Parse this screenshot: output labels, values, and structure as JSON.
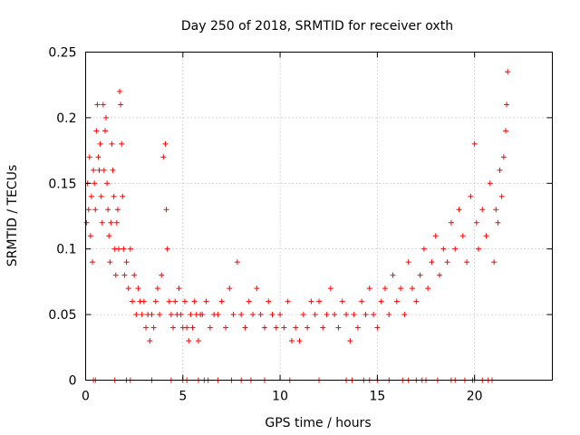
{
  "chart_data": {
    "type": "scatter",
    "title": "Day 250 of 2018, SRMTID for receiver oxth",
    "xlabel": "GPS time / hours",
    "ylabel": "SRMTID / TECUs",
    "xlim": [
      0,
      24
    ],
    "ylim": [
      0,
      0.25
    ],
    "xticks": [
      0,
      5,
      10,
      15,
      20
    ],
    "yticks": [
      0,
      0.05,
      0.1,
      0.15,
      0.2,
      0.25
    ],
    "xtick_labels": [
      "0",
      "5",
      "10",
      "15",
      "20"
    ],
    "ytick_labels": [
      "0",
      "0.05",
      "0.1",
      "0.15",
      "0.2",
      "0.25"
    ],
    "grid": true,
    "marker": "+",
    "color": "#ff0000",
    "series": [
      {
        "name": "SRMTID",
        "points": [
          [
            0.05,
            0.12
          ],
          [
            0.1,
            0.15
          ],
          [
            0.15,
            0.13
          ],
          [
            0.2,
            0.17
          ],
          [
            0.25,
            0.11
          ],
          [
            0.3,
            0.14
          ],
          [
            0.35,
            0.09
          ],
          [
            0.4,
            0.16
          ],
          [
            0.45,
            0.15
          ],
          [
            0.5,
            0.13
          ],
          [
            0.55,
            0.19
          ],
          [
            0.6,
            0.21
          ],
          [
            0.65,
            0.17
          ],
          [
            0.7,
            0.16
          ],
          [
            0.75,
            0.18
          ],
          [
            0.8,
            0.14
          ],
          [
            0.85,
            0.12
          ],
          [
            0.9,
            0.21
          ],
          [
            0.95,
            0.16
          ],
          [
            1.0,
            0.19
          ],
          [
            1.05,
            0.2
          ],
          [
            1.1,
            0.15
          ],
          [
            1.15,
            0.13
          ],
          [
            1.2,
            0.11
          ],
          [
            1.25,
            0.09
          ],
          [
            1.3,
            0.12
          ],
          [
            1.35,
            0.18
          ],
          [
            1.4,
            0.16
          ],
          [
            1.45,
            0.14
          ],
          [
            1.5,
            0.1
          ],
          [
            1.55,
            0.08
          ],
          [
            1.6,
            0.12
          ],
          [
            1.65,
            0.13
          ],
          [
            1.7,
            0.1
          ],
          [
            1.75,
            0.22
          ],
          [
            1.8,
            0.21
          ],
          [
            1.85,
            0.18
          ],
          [
            1.9,
            0.14
          ],
          [
            1.95,
            0.1
          ],
          [
            2.0,
            0.08
          ],
          [
            2.1,
            0.09
          ],
          [
            2.2,
            0.07
          ],
          [
            2.3,
            0.1
          ],
          [
            2.4,
            0.06
          ],
          [
            2.5,
            0.08
          ],
          [
            2.6,
            0.05
          ],
          [
            2.7,
            0.07
          ],
          [
            2.8,
            0.06
          ],
          [
            2.9,
            0.05
          ],
          [
            3.0,
            0.06
          ],
          [
            3.1,
            0.04
          ],
          [
            3.2,
            0.05
          ],
          [
            3.3,
            0.03
          ],
          [
            3.4,
            0.05
          ],
          [
            3.5,
            0.04
          ],
          [
            3.6,
            0.06
          ],
          [
            3.7,
            0.07
          ],
          [
            3.8,
            0.05
          ],
          [
            3.9,
            0.08
          ],
          [
            4.0,
            0.17
          ],
          [
            4.1,
            0.18
          ],
          [
            4.15,
            0.13
          ],
          [
            4.2,
            0.1
          ],
          [
            4.3,
            0.06
          ],
          [
            4.4,
            0.05
          ],
          [
            4.5,
            0.04
          ],
          [
            4.6,
            0.06
          ],
          [
            4.7,
            0.05
          ],
          [
            4.8,
            0.07
          ],
          [
            4.9,
            0.05
          ],
          [
            5.0,
            0.04
          ],
          [
            5.1,
            0.06
          ],
          [
            5.2,
            0.04
          ],
          [
            5.3,
            0.03
          ],
          [
            5.4,
            0.05
          ],
          [
            5.5,
            0.04
          ],
          [
            5.6,
            0.06
          ],
          [
            5.7,
            0.05
          ],
          [
            5.8,
            0.03
          ],
          [
            5.9,
            0.05
          ],
          [
            6.0,
            0.05
          ],
          [
            6.2,
            0.06
          ],
          [
            6.4,
            0.04
          ],
          [
            6.6,
            0.05
          ],
          [
            6.8,
            0.05
          ],
          [
            7.0,
            0.06
          ],
          [
            7.2,
            0.04
          ],
          [
            7.4,
            0.07
          ],
          [
            7.6,
            0.05
          ],
          [
            7.8,
            0.09
          ],
          [
            8.0,
            0.05
          ],
          [
            8.2,
            0.04
          ],
          [
            8.4,
            0.06
          ],
          [
            8.6,
            0.05
          ],
          [
            8.8,
            0.07
          ],
          [
            9.0,
            0.05
          ],
          [
            9.2,
            0.04
          ],
          [
            9.4,
            0.06
          ],
          [
            9.6,
            0.05
          ],
          [
            9.8,
            0.04
          ],
          [
            10.0,
            0.05
          ],
          [
            10.2,
            0.04
          ],
          [
            10.4,
            0.06
          ],
          [
            10.6,
            0.03
          ],
          [
            10.8,
            0.04
          ],
          [
            11.0,
            0.03
          ],
          [
            11.2,
            0.05
          ],
          [
            11.4,
            0.04
          ],
          [
            11.6,
            0.06
          ],
          [
            11.8,
            0.05
          ],
          [
            12.0,
            0.06
          ],
          [
            12.2,
            0.04
          ],
          [
            12.4,
            0.05
          ],
          [
            12.6,
            0.07
          ],
          [
            12.8,
            0.05
          ],
          [
            13.0,
            0.04
          ],
          [
            13.2,
            0.06
          ],
          [
            13.4,
            0.05
          ],
          [
            13.6,
            0.03
          ],
          [
            13.8,
            0.05
          ],
          [
            14.0,
            0.04
          ],
          [
            14.2,
            0.06
          ],
          [
            14.4,
            0.05
          ],
          [
            14.6,
            0.07
          ],
          [
            14.8,
            0.05
          ],
          [
            15.0,
            0.04
          ],
          [
            15.2,
            0.06
          ],
          [
            15.4,
            0.07
          ],
          [
            15.6,
            0.05
          ],
          [
            15.8,
            0.08
          ],
          [
            16.0,
            0.06
          ],
          [
            16.2,
            0.07
          ],
          [
            16.4,
            0.05
          ],
          [
            16.6,
            0.09
          ],
          [
            16.8,
            0.07
          ],
          [
            17.0,
            0.06
          ],
          [
            17.2,
            0.08
          ],
          [
            17.4,
            0.1
          ],
          [
            17.6,
            0.07
          ],
          [
            17.8,
            0.09
          ],
          [
            18.0,
            0.11
          ],
          [
            18.2,
            0.08
          ],
          [
            18.4,
            0.1
          ],
          [
            18.6,
            0.09
          ],
          [
            18.8,
            0.12
          ],
          [
            19.0,
            0.1
          ],
          [
            19.2,
            0.13
          ],
          [
            19.4,
            0.11
          ],
          [
            19.6,
            0.09
          ],
          [
            19.8,
            0.14
          ],
          [
            20.0,
            0.18
          ],
          [
            20.1,
            0.12
          ],
          [
            20.2,
            0.1
          ],
          [
            20.4,
            0.13
          ],
          [
            20.6,
            0.11
          ],
          [
            20.8,
            0.15
          ],
          [
            21.0,
            0.09
          ],
          [
            21.1,
            0.13
          ],
          [
            21.2,
            0.12
          ],
          [
            21.3,
            0.16
          ],
          [
            21.4,
            0.14
          ],
          [
            21.5,
            0.17
          ],
          [
            21.6,
            0.19
          ],
          [
            21.65,
            0.21
          ],
          [
            21.7,
            0.235
          ]
        ]
      }
    ],
    "baseline_markers_x": [
      0.4,
      0.5,
      1.5,
      2.1,
      2.3,
      3.4,
      4.4,
      5.0,
      5.2,
      5.8,
      6.1,
      6.3,
      6.8,
      7.5,
      8.0,
      8.5,
      9.2,
      10.5,
      12.0,
      13.4,
      13.7,
      14.3,
      14.6,
      15.0,
      15.6,
      16.3,
      16.6,
      17.0,
      17.3,
      17.5,
      18.1,
      18.8,
      19.0,
      19.5,
      19.9,
      20.0,
      20.4,
      20.7,
      20.9
    ]
  }
}
